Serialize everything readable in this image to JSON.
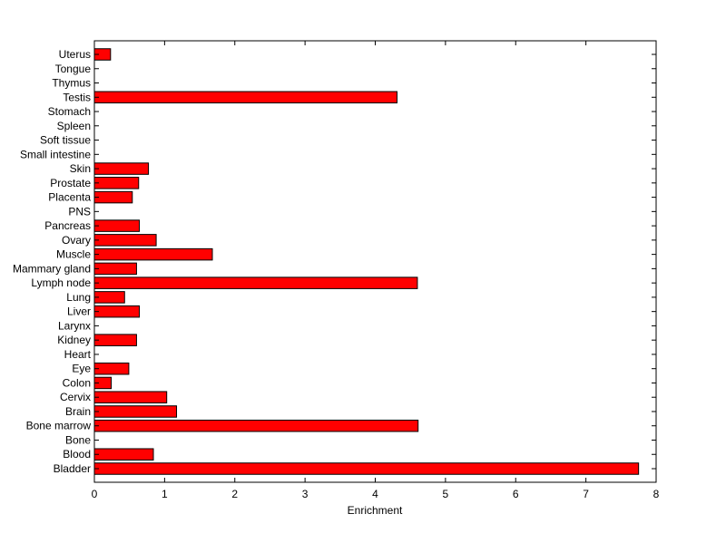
{
  "chart_data": {
    "type": "bar",
    "orientation": "horizontal",
    "categories": [
      "Bladder",
      "Blood",
      "Bone",
      "Bone marrow",
      "Brain",
      "Cervix",
      "Colon",
      "Eye",
      "Heart",
      "Kidney",
      "Larynx",
      "Liver",
      "Lung",
      "Lymph node",
      "Mammary gland",
      "Muscle",
      "Ovary",
      "Pancreas",
      "PNS",
      "Placenta",
      "Prostate",
      "Skin",
      "Small intestine",
      "Soft tissue",
      "Spleen",
      "Stomach",
      "Testis",
      "Thymus",
      "Tongue",
      "Uterus"
    ],
    "values": [
      7.75,
      0.84,
      0,
      4.61,
      1.17,
      1.03,
      0.24,
      0.49,
      0,
      0.6,
      0,
      0.64,
      0.43,
      4.6,
      0.6,
      1.68,
      0.88,
      0.64,
      0,
      0.54,
      0.63,
      0.77,
      0,
      0,
      0,
      0,
      4.31,
      0,
      0,
      0.23
    ],
    "xlabel": "Enrichment",
    "ylabel": "",
    "title": "",
    "xlim": [
      0,
      8
    ],
    "xticks": [
      0,
      1,
      2,
      3,
      4,
      5,
      6,
      7,
      8
    ],
    "grid": false,
    "bar_color": "#ff0000",
    "bar_edge_color": "#000000"
  }
}
